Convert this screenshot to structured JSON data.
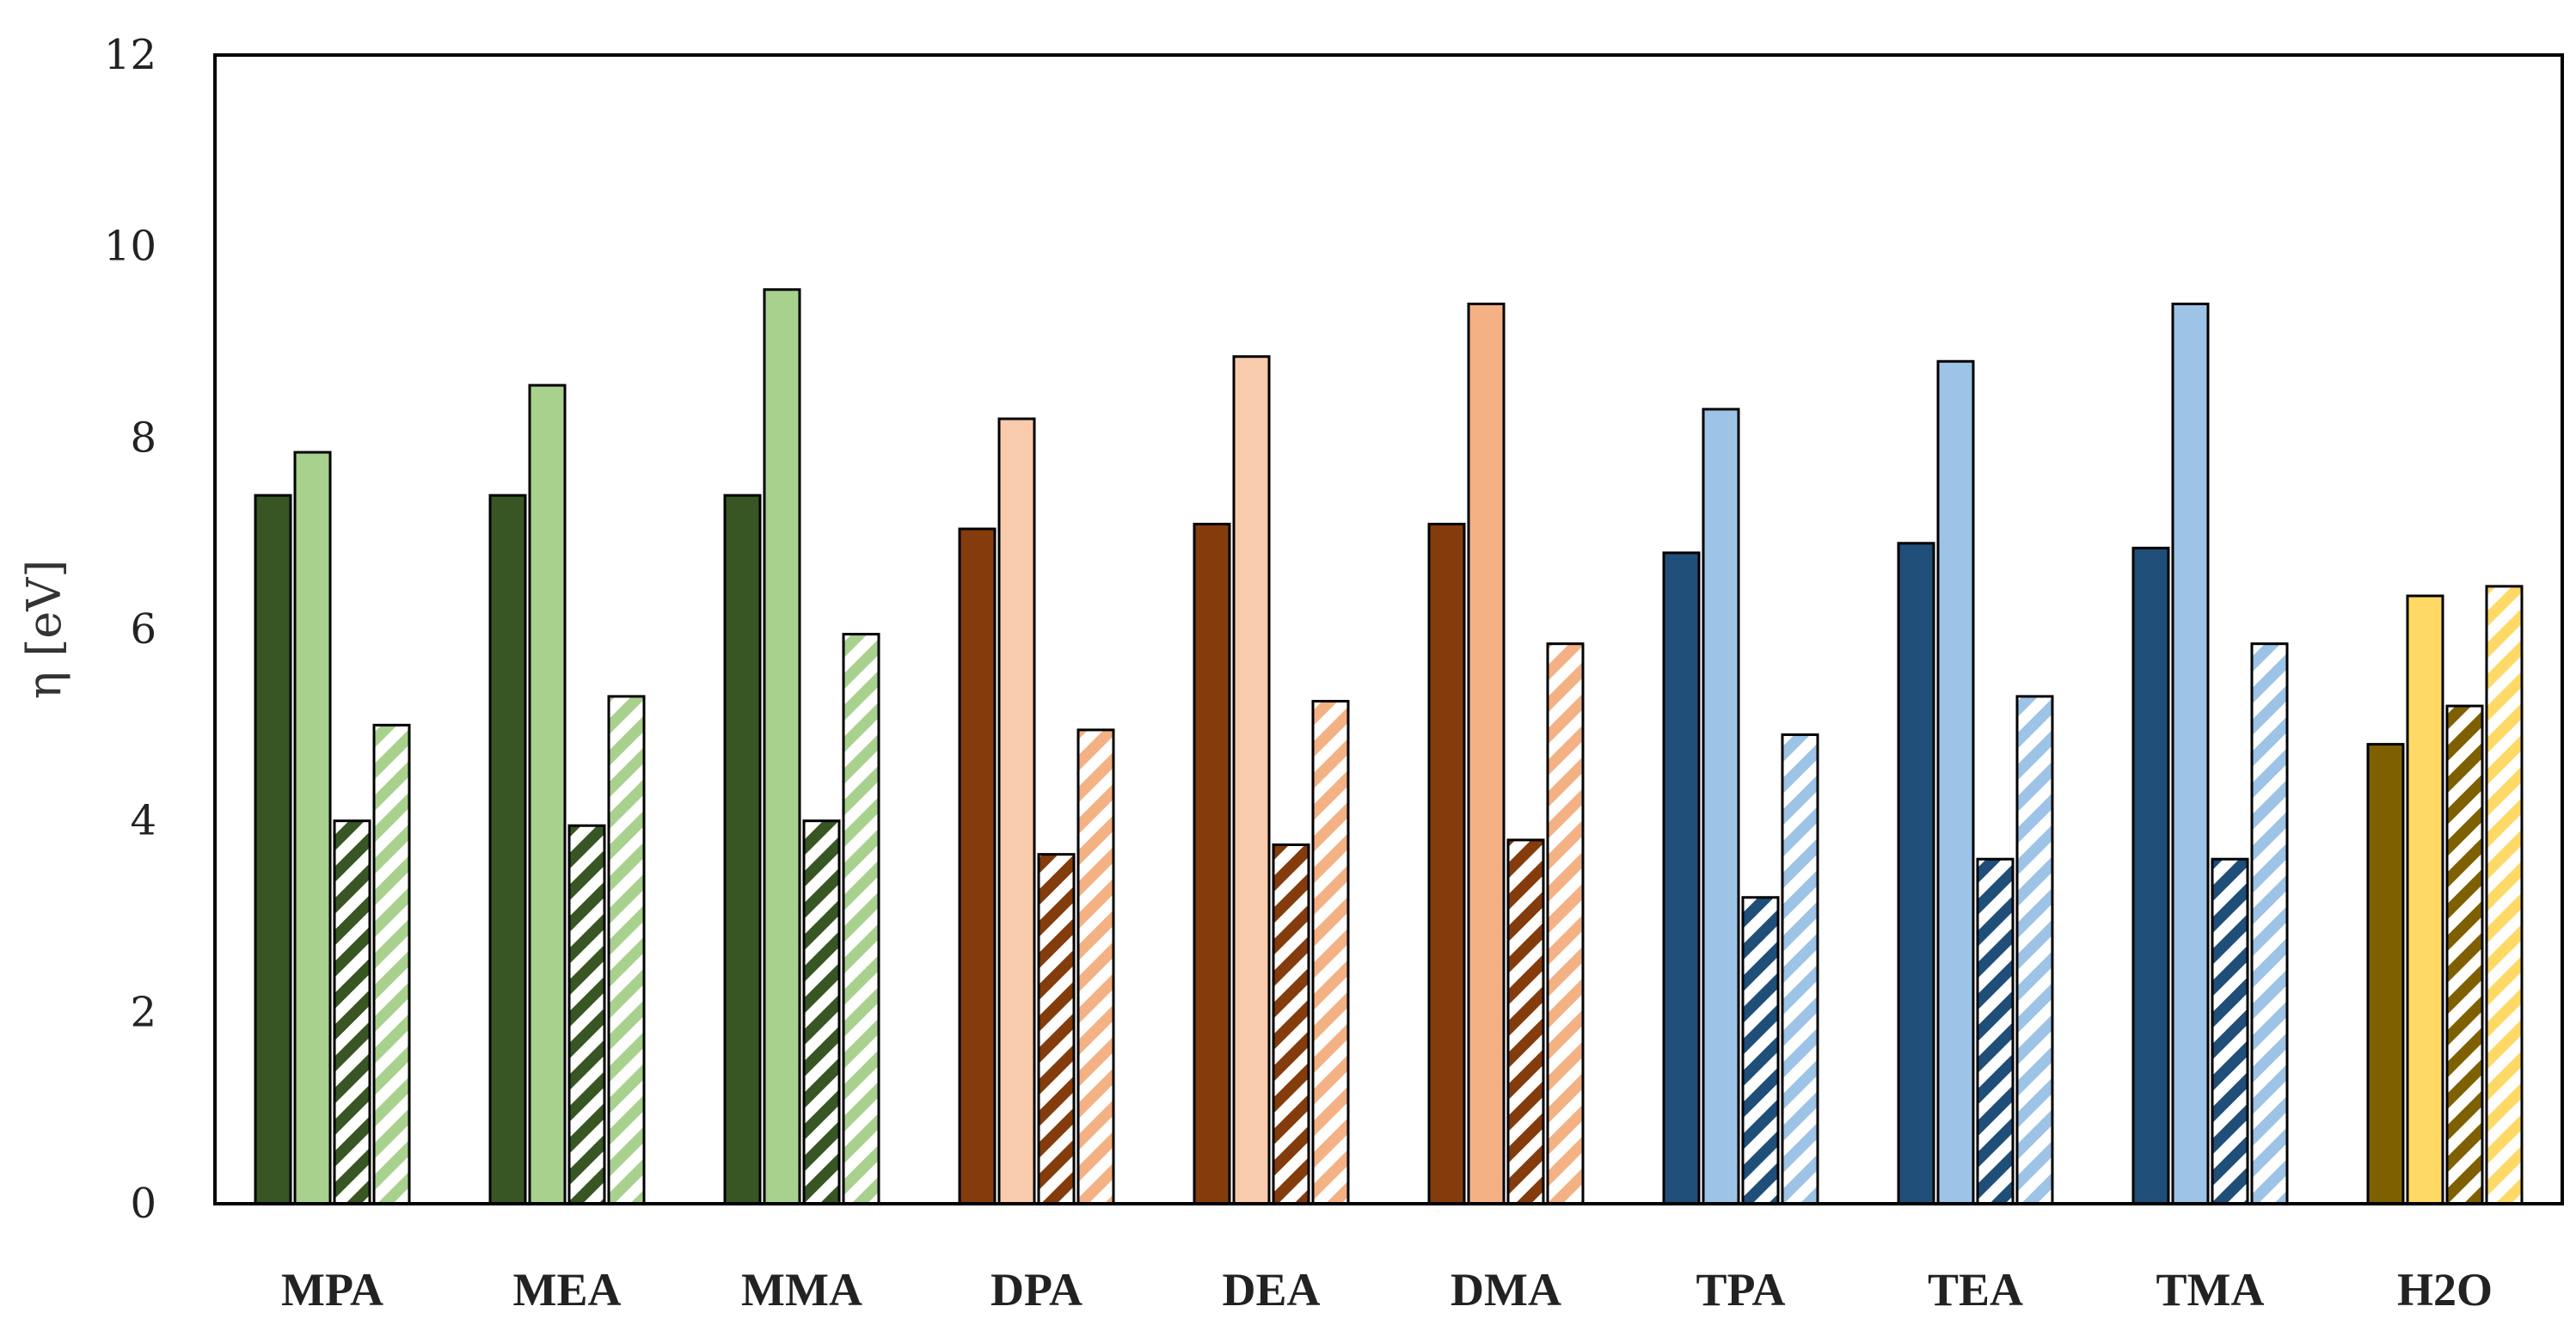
{
  "chart_data": {
    "type": "bar",
    "title": "",
    "xlabel": "",
    "ylabel": "η [eV]",
    "ylim": [
      0,
      12
    ],
    "yticks": [
      0,
      2,
      4,
      6,
      8,
      10,
      12
    ],
    "grid": false,
    "legend": "none",
    "categories": [
      "MPA",
      "MEA",
      "MMA",
      "DPA",
      "DEA",
      "DMA",
      "TPA",
      "TEA",
      "TMA",
      "H2O"
    ],
    "colors": {
      "MPA": [
        "#375623",
        "#a9d18e"
      ],
      "MEA": [
        "#375623",
        "#a9d18e"
      ],
      "MMA": [
        "#375623",
        "#a9d18e"
      ],
      "DPA": [
        "#843c0c",
        "#f8cbad",
        "#f4b183"
      ],
      "DEA": [
        "#843c0c",
        "#f8cbad",
        "#f4b183"
      ],
      "DMA": [
        "#843c0c",
        "#f4b183"
      ],
      "TPA": [
        "#1f4e79",
        "#9dc3e6"
      ],
      "TEA": [
        "#1f4e79",
        "#9dc3e6"
      ],
      "TMA": [
        "#1f4e79",
        "#9dc3e6"
      ],
      "H2O": [
        "#7f6000",
        "#ffd966"
      ]
    },
    "series": [
      {
        "pattern": "solid-dark",
        "values": [
          7.4,
          7.4,
          7.4,
          7.05,
          7.1,
          7.1,
          6.8,
          6.9,
          6.85,
          4.8
        ]
      },
      {
        "pattern": "solid-light",
        "values": [
          7.85,
          8.55,
          9.55,
          8.2,
          8.85,
          9.4,
          8.3,
          8.8,
          9.4,
          6.35
        ]
      },
      {
        "pattern": "hatched-dark",
        "values": [
          4.0,
          3.95,
          4.0,
          3.65,
          3.75,
          3.8,
          3.2,
          3.6,
          3.6,
          5.2
        ]
      },
      {
        "pattern": "hatched-light",
        "values": [
          5.0,
          5.3,
          5.95,
          4.95,
          5.25,
          5.85,
          4.9,
          5.3,
          5.85,
          6.45
        ]
      }
    ]
  }
}
